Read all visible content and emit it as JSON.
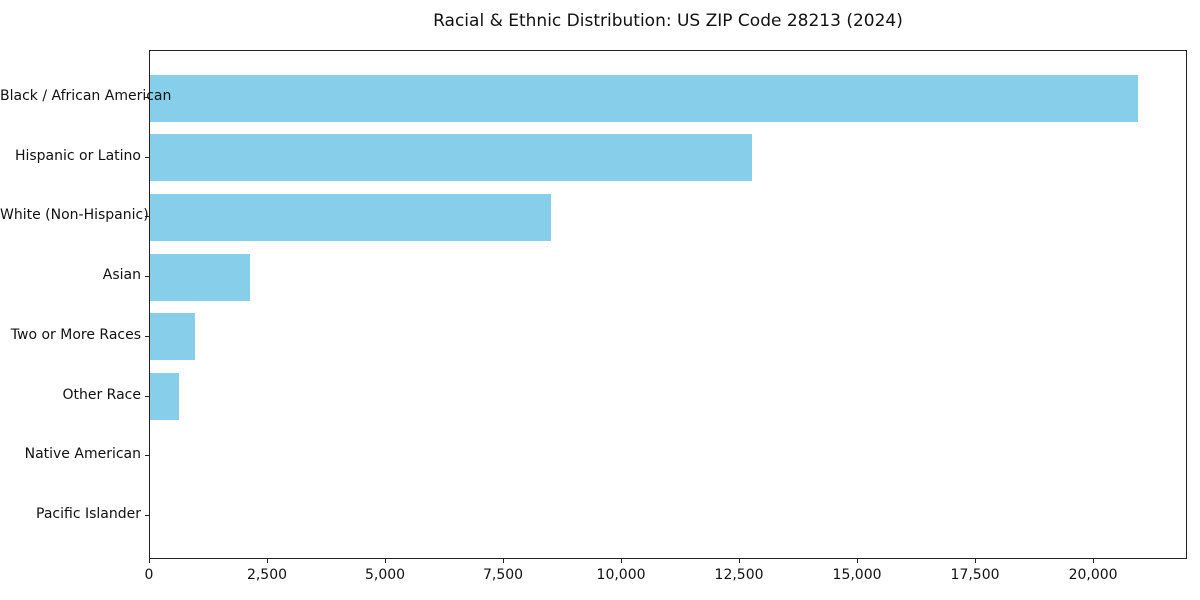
{
  "title": "Racial & Ethnic Distribution: US ZIP Code 28213 (2024)",
  "colors": {
    "bar": "#87CEEB",
    "axis": "#222222",
    "text": "#111111",
    "background": "#ffffff"
  },
  "chart_data": {
    "type": "bar",
    "orientation": "horizontal",
    "title": "Racial & Ethnic Distribution: US ZIP Code 28213 (2024)",
    "categories": [
      "Black / African American",
      "Hispanic or Latino",
      "White (Non-Hispanic)",
      "Asian",
      "Two or More Races",
      "Other Race",
      "Native American",
      "Pacific Islander"
    ],
    "values": [
      20930,
      12750,
      8500,
      2120,
      950,
      610,
      0,
      0
    ],
    "xlabel": "",
    "ylabel": "",
    "xlim": [
      0,
      21990
    ],
    "x_ticks": [
      0,
      2500,
      5000,
      7500,
      10000,
      12500,
      15000,
      17500,
      20000
    ],
    "x_tick_labels": [
      "0",
      "2,500",
      "5,000",
      "7,500",
      "10,000",
      "12,500",
      "15,000",
      "17,500",
      "20,000"
    ],
    "bar_color": "#87CEEB",
    "grid": false,
    "legend": null
  }
}
